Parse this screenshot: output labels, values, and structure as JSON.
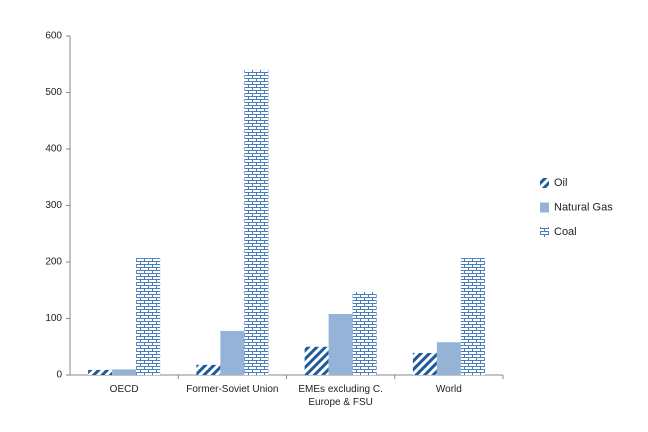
{
  "chart_data": {
    "type": "bar",
    "categories": [
      "OECD",
      "Former-Soviet Union",
      "EMEs excluding C. Europe & FSU",
      "World"
    ],
    "series": [
      {
        "name": "Oil",
        "color": "#1f5a9a",
        "pattern": "diagonal",
        "values": [
          9,
          18,
          50,
          39
        ]
      },
      {
        "name": "Natural Gas",
        "color": "#95b3d7",
        "pattern": "solid",
        "values": [
          10,
          78,
          108,
          58
        ]
      },
      {
        "name": "Coal",
        "color": "#4a7ebb",
        "pattern": "brick",
        "values": [
          207,
          540,
          147,
          207
        ]
      }
    ],
    "ylim": [
      0,
      600
    ],
    "yticks": [
      0,
      100,
      200,
      300,
      400,
      500,
      600
    ],
    "legend": "right"
  }
}
